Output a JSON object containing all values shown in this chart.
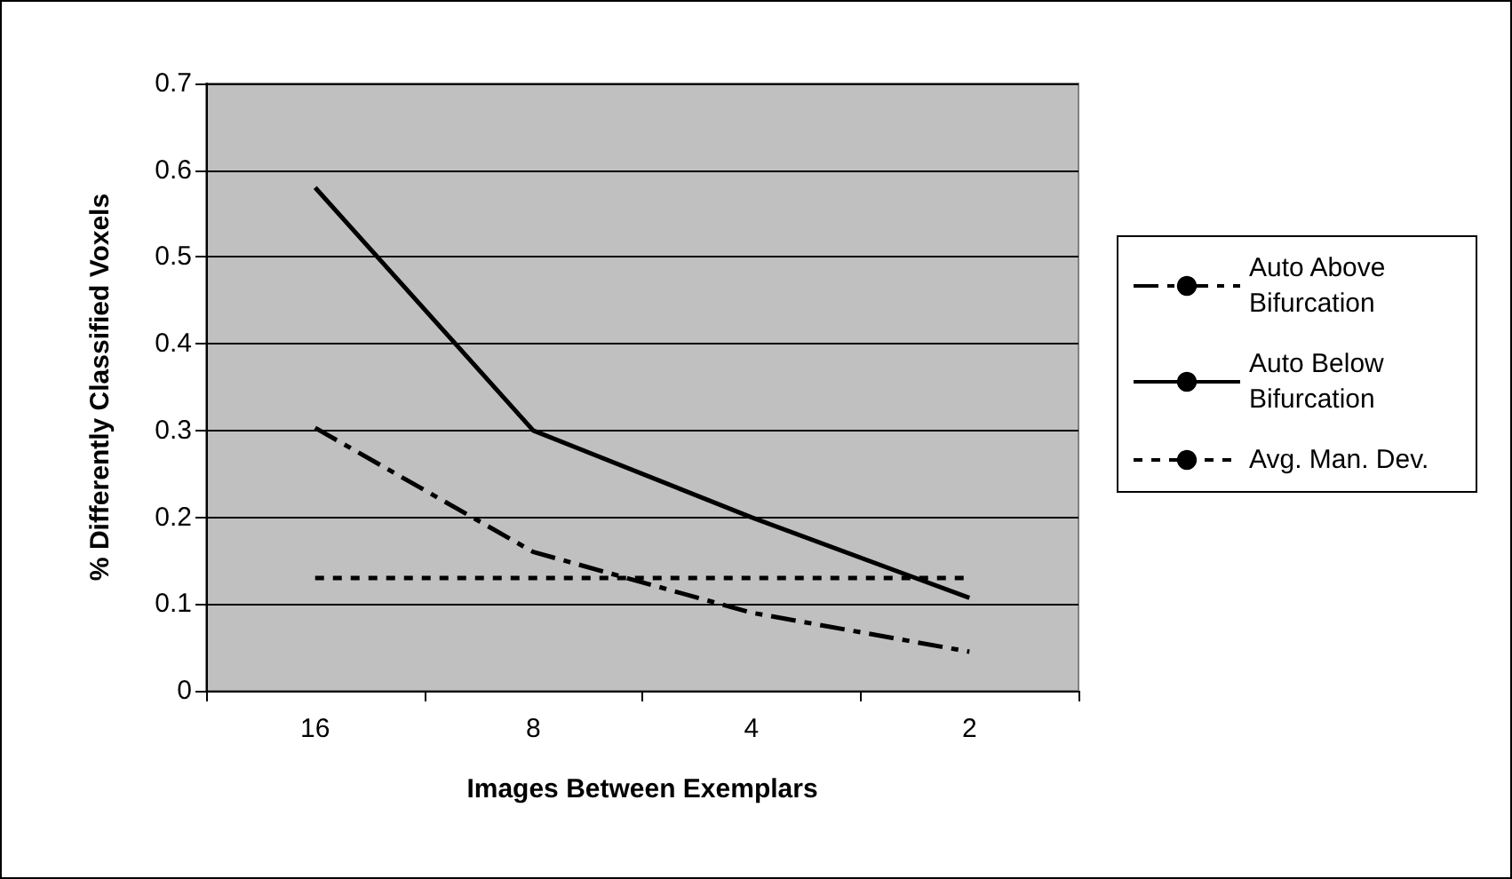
{
  "chart_data": {
    "type": "line",
    "xlabel": "Images Between Exemplars",
    "ylabel": "% Differently Classified Voxels",
    "categories": [
      "16",
      "8",
      "4",
      "2"
    ],
    "series": [
      {
        "name": "Auto Above Bifurcation",
        "color": "#000000",
        "line_style": "dashed",
        "values": [
          0.303,
          0.16,
          0.09,
          0.045
        ]
      },
      {
        "name": "Auto Below Bifurcation",
        "color": "#000000",
        "line_style": "solid",
        "values": [
          0.58,
          0.3,
          0.2,
          0.107
        ]
      },
      {
        "name": "Avg. Man. Dev.",
        "color": "#000000",
        "line_style": "dotted",
        "values": [
          0.13,
          0.13,
          0.13,
          0.13
        ]
      }
    ],
    "ylim": [
      0,
      0.7
    ],
    "yticks": [
      0,
      0.1,
      0.2,
      0.3,
      0.4,
      0.5,
      0.6,
      0.7
    ],
    "grid": "y",
    "legend": "right",
    "marker": "none"
  }
}
